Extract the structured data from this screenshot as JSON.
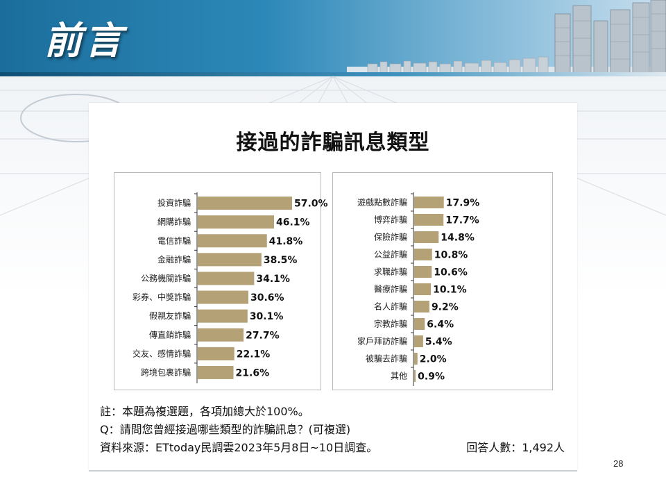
{
  "header": {
    "title": "前言"
  },
  "chart_title": "接過的詐騙訊息類型",
  "chart_data": [
    {
      "type": "bar",
      "orientation": "horizontal",
      "categories": [
        "投資詐騙",
        "網購詐騙",
        "電信詐騙",
        "金融詐騙",
        "公務機關詐騙",
        "彩券、中獎詐騙",
        "假親友詐騙",
        "傳直銷詐騙",
        "交友、感情詐騙",
        "跨境包裹詐騙"
      ],
      "values": [
        57.0,
        46.1,
        41.8,
        38.5,
        34.1,
        30.6,
        30.1,
        27.7,
        22.1,
        21.6
      ],
      "value_labels": [
        "57.0%",
        "46.1%",
        "41.8%",
        "38.5%",
        "34.1%",
        "30.6%",
        "30.1%",
        "27.7%",
        "22.1%",
        "21.6%"
      ],
      "xlim": [
        0,
        57.0
      ],
      "bar_color": "#b4a276"
    },
    {
      "type": "bar",
      "orientation": "horizontal",
      "categories": [
        "遊戲點數詐騙",
        "博弈詐騙",
        "保險詐騙",
        "公益詐騙",
        "求職詐騙",
        "醫療詐騙",
        "名人詐騙",
        "宗教詐騙",
        "家戶拜訪詐騙",
        "被騙去詐騙",
        "其他"
      ],
      "values": [
        17.9,
        17.7,
        14.8,
        10.8,
        10.6,
        10.1,
        9.2,
        6.4,
        5.4,
        2.0,
        0.9
      ],
      "value_labels": [
        "17.9%",
        "17.7%",
        "14.8%",
        "10.8%",
        "10.6%",
        "10.1%",
        "9.2%",
        "6.4%",
        "5.4%",
        "2.0%",
        "0.9%"
      ],
      "xlim": [
        0,
        57.0
      ],
      "bar_color": "#b4a276"
    }
  ],
  "notes": {
    "note": "註：本題為複選題，各項加總大於100%。",
    "question": "Q：請問您曾經接過哪些類型的詐騙訊息？(可複選)",
    "source": "資料來源：ETtoday民調雲2023年5月8日~10日調查。",
    "respondents": "回答人數：1,492人"
  },
  "page_number": "28"
}
